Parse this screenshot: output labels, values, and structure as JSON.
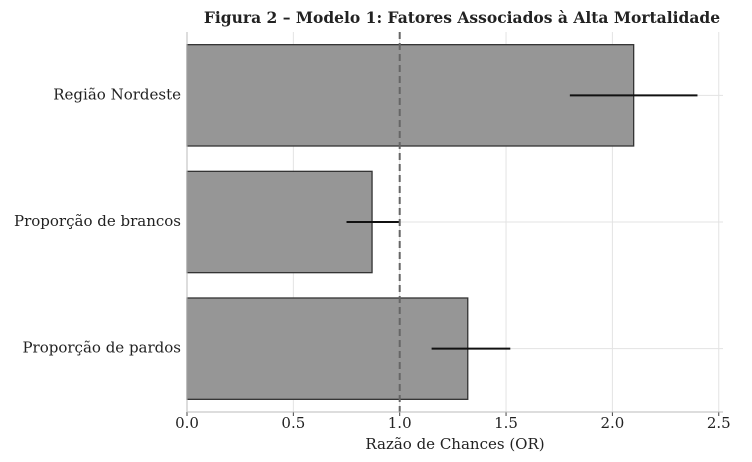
{
  "chart_data": {
    "type": "bar",
    "orientation": "horizontal",
    "title": "Figura 2 – Modelo 1: Fatores Associados à Alta Mortalidade",
    "xlabel": "Razão de Chances (OR)",
    "categories": [
      "Região Nordeste",
      "Proporção de brancos",
      "Proporção de pardos"
    ],
    "values": [
      2.1,
      0.87,
      1.32
    ],
    "ci_low": [
      1.8,
      0.75,
      1.15
    ],
    "ci_high": [
      2.4,
      1.0,
      1.52
    ],
    "color": "#969696",
    "reference_line": 1.0,
    "xlim": [
      0,
      2.52
    ],
    "xticks": [
      {
        "value": 0,
        "label": "0.0"
      },
      0.5,
      {
        "value": 1,
        "label": "1.0"
      },
      1.5,
      {
        "value": 2,
        "label": "2.0"
      },
      2.5
    ],
    "grid": true
  }
}
